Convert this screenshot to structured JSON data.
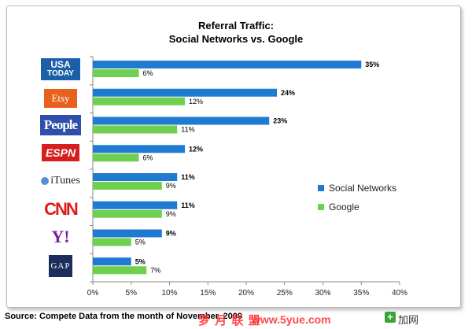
{
  "chart_data": {
    "type": "bar",
    "orientation": "horizontal",
    "title": "Referral Traffic:",
    "subtitle": "Social Networks vs. Google",
    "categories": [
      "USA TODAY",
      "Etsy",
      "People",
      "ESPN",
      "iTunes",
      "CNN",
      "Yahoo!",
      "GAP"
    ],
    "series": [
      {
        "name": "Social Networks",
        "color": "#1f7bd1",
        "values": [
          35,
          24,
          23,
          12,
          11,
          11,
          9,
          5
        ]
      },
      {
        "name": "Google",
        "color": "#6fd04f",
        "values": [
          6,
          12,
          11,
          6,
          9,
          9,
          5,
          7
        ]
      }
    ],
    "data_labels_social": [
      "35%",
      "24%",
      "23%",
      "12%",
      "11%",
      "11%",
      "9%",
      "5%"
    ],
    "data_labels_google": [
      "6%",
      "12%",
      "11%",
      "6%",
      "9%",
      "9%",
      "5%",
      "7%"
    ],
    "xlim": [
      0,
      40
    ],
    "x_ticks": [
      0,
      5,
      10,
      15,
      20,
      25,
      30,
      35,
      40
    ],
    "x_tick_labels": [
      "0%",
      "5%",
      "10%",
      "15%",
      "20%",
      "25%",
      "30%",
      "35%",
      "40%"
    ],
    "xlabel": "",
    "ylabel": "",
    "grid": false,
    "legend": "right"
  },
  "logos": {
    "usatoday_line1": "USA",
    "usatoday_line2": "TODAY",
    "etsy": "Etsy",
    "people": "People",
    "espn": "ESPN",
    "itunes": "iTunes",
    "cnn": "CNN",
    "yahoo": "Y!",
    "gap": "GAP"
  },
  "source_text": "Source: Compete  Data from the month of November, 2009",
  "watermark_cn": "梦 月 联 盟",
  "watermark_url": "www.5yue.com",
  "watermark_plus": "+",
  "watermark_jia": "加网",
  "colors": {
    "social": "#1f7bd1",
    "google": "#6fd04f",
    "axis": "#888888"
  }
}
